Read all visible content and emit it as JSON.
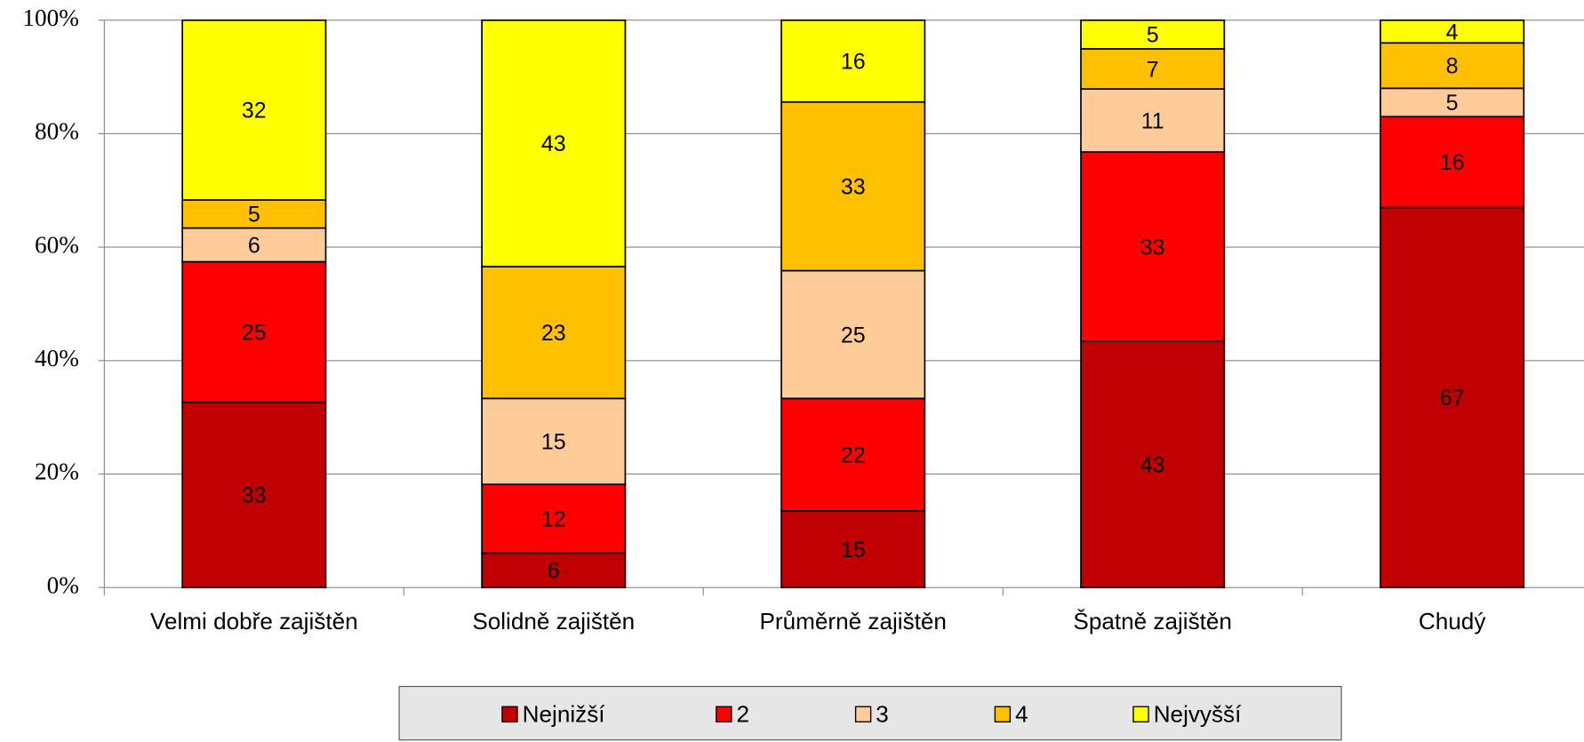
{
  "chart_data": {
    "type": "bar",
    "stacked": "percent",
    "categories": [
      "Velmi dobře zajištěn",
      "Solidně zajištěn",
      "Průměrně zajištěn",
      "Špatně zajištěn",
      "Chudý"
    ],
    "series": [
      {
        "name": "Nejnižší",
        "color": "#c00000",
        "values": [
          33,
          6,
          15,
          43,
          67
        ]
      },
      {
        "name": "2",
        "color": "#ff0000",
        "values": [
          25,
          12,
          22,
          33,
          16
        ]
      },
      {
        "name": "3",
        "color": "#ffcc99",
        "values": [
          6,
          15,
          25,
          11,
          5
        ]
      },
      {
        "name": "4",
        "color": "#ffc000",
        "values": [
          5,
          23,
          33,
          7,
          8
        ]
      },
      {
        "name": "Nejvyšší",
        "color": "#ffff00",
        "values": [
          32,
          43,
          16,
          5,
          4
        ]
      }
    ],
    "ylim": [
      0,
      100
    ],
    "yticks": [
      {
        "value": 0,
        "label": "0%"
      },
      {
        "value": 20,
        "label": "20%"
      },
      {
        "value": 40,
        "label": "40%"
      },
      {
        "value": 60,
        "label": "60%"
      },
      {
        "value": 80,
        "label": "80%"
      },
      {
        "value": 100,
        "label": "100%"
      }
    ],
    "grid": true,
    "legend": "bottom"
  }
}
